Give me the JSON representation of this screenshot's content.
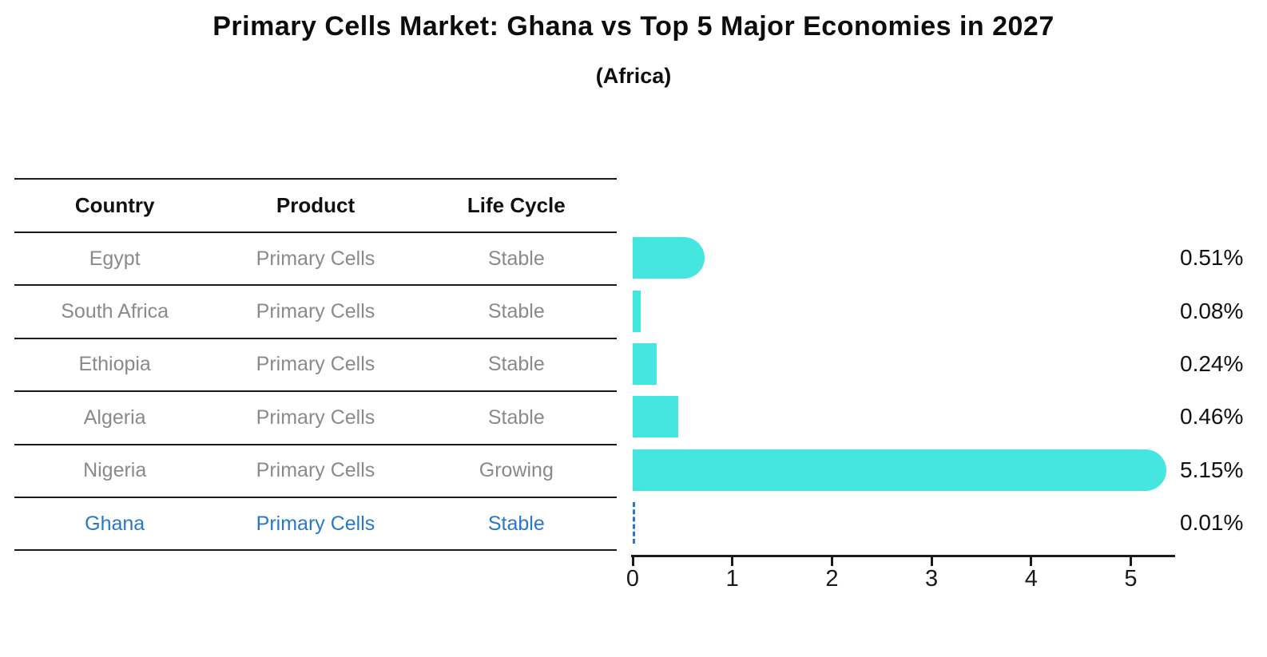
{
  "title": "Primary Cells Market: Ghana vs Top 5 Major Economies in 2027",
  "subtitle": "(Africa)",
  "colors": {
    "bar_fill": "#45E6E0",
    "highlight_blue": "#2878C8",
    "table_text_gray": "#8a8a8a",
    "text_black": "#111111"
  },
  "table": {
    "columns": [
      "Country",
      "Product",
      "Life Cycle"
    ]
  },
  "chart_data": {
    "type": "bar",
    "orientation": "horizontal",
    "title": "Primary Cells Market: Ghana vs Top 5 Major Economies in 2027",
    "subtitle": "(Africa)",
    "xlabel": "",
    "ylabel": "",
    "xlim": [
      0,
      5.45
    ],
    "x_ticks": [
      0,
      1,
      2,
      3,
      4,
      5
    ],
    "grid": false,
    "legend": "none",
    "rows": [
      {
        "country": "Egypt",
        "product": "Primary Cells",
        "life_cycle": "Stable",
        "value": 0.51,
        "label": "0.51%",
        "highlight": false
      },
      {
        "country": "South Africa",
        "product": "Primary Cells",
        "life_cycle": "Stable",
        "value": 0.08,
        "label": "0.08%",
        "highlight": false
      },
      {
        "country": "Ethiopia",
        "product": "Primary Cells",
        "life_cycle": "Stable",
        "value": 0.24,
        "label": "0.24%",
        "highlight": false
      },
      {
        "country": "Algeria",
        "product": "Primary Cells",
        "life_cycle": "Stable",
        "value": 0.46,
        "label": "0.46%",
        "highlight": false
      },
      {
        "country": "Nigeria",
        "product": "Primary Cells",
        "life_cycle": "Growing",
        "value": 5.15,
        "label": "5.15%",
        "highlight": false
      },
      {
        "country": "Ghana",
        "product": "Primary Cells",
        "life_cycle": "Stable",
        "value": 0.01,
        "label": "0.01%",
        "highlight": true
      }
    ]
  }
}
